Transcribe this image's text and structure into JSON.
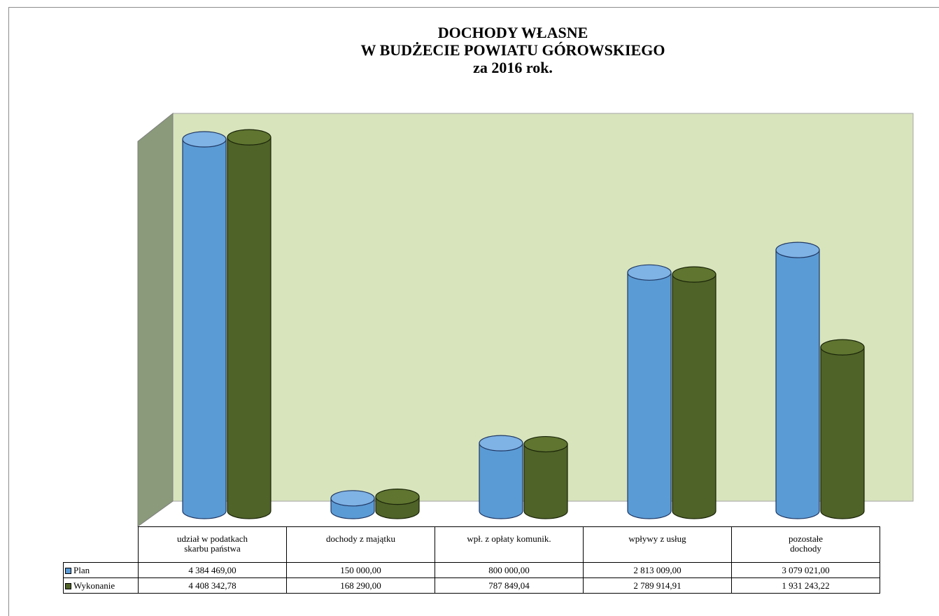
{
  "title": {
    "line1": "DOCHODY WŁASNE",
    "line2": "W BUDŻECIE POWIATU GÓROWSKIEGO",
    "line3": "za   2016 rok."
  },
  "colors": {
    "plan": "#5b9bd5",
    "wykonanie": "#4f6228",
    "wall": "#d8e4bc",
    "side_wall": "#8a9a7a"
  },
  "chart_data": {
    "type": "bar",
    "style": "3d-cylinder",
    "title": "DOCHODY WŁASNE W BUDŻECIE POWIATU GÓROWSKIEGO za 2016 rok.",
    "categories": [
      [
        "udział w podatkach",
        "skarbu państwa"
      ],
      [
        "dochody z majątku"
      ],
      [
        "wpł. z opłaty komunik."
      ],
      [
        "wpływy z usług"
      ],
      [
        "pozostałe",
        "dochody"
      ]
    ],
    "series": [
      {
        "name": "Plan",
        "values": [
          4384469.0,
          150000.0,
          800000.0,
          2813009.0,
          3079021.0
        ],
        "labels": [
          "4 384 469,00",
          "150 000,00",
          "800 000,00",
          "2 813 009,00",
          "3 079 021,00"
        ]
      },
      {
        "name": "Wykonanie",
        "values": [
          4408342.78,
          168290.0,
          787849.04,
          2789914.91,
          1931243.22
        ],
        "labels": [
          "4 408 342,78",
          "168 290,00",
          "787 849,04",
          "2 789 914,91",
          "1 931 243,22"
        ]
      }
    ],
    "ylim": [
      0,
      4500000
    ],
    "legend": "data-table",
    "grid": false
  }
}
